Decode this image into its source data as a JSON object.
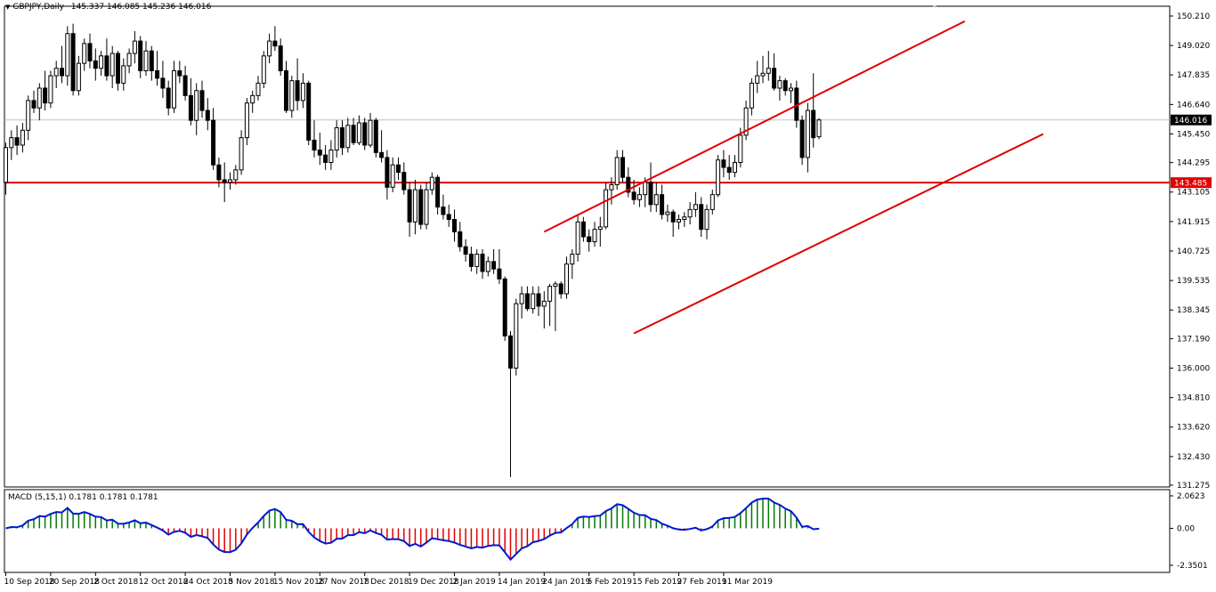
{
  "header": {
    "symbol_label": "GBPJPY,Daily",
    "ohlc_label": "145.337 146.085 145.236 146.016",
    "menu_icon": "triangle-down-icon"
  },
  "macd_header": {
    "label": "MACD (5,15,1) 0.1781 0.1781 0.1781"
  },
  "colors": {
    "background": "#ffffff",
    "candle_outline": "#000000",
    "bull_body": "#ffffff",
    "bear_body": "#000000",
    "trendline": "#e00000",
    "hline": "#e00000",
    "macd_positive": "#007a00",
    "macd_negative": "#e00000",
    "macd_line": "#0018d0",
    "last_price_bg": "#000000",
    "last_price_fg": "#ffffff",
    "hline_label_bg": "#e00000",
    "hline_label_fg": "#ffffff"
  },
  "chart_data": [
    {
      "type": "candlestick",
      "symbol": "GBPJPY",
      "timeframe": "Daily",
      "ylim": [
        131.275,
        150.21
      ],
      "price_ticks": [
        "150.210",
        "149.020",
        "147.835",
        "146.640",
        "145.450",
        "144.295",
        "143.105",
        "141.915",
        "140.725",
        "139.535",
        "138.345",
        "137.190",
        "136.000",
        "134.810",
        "133.620",
        "132.430",
        "131.275"
      ],
      "date_labels": [
        "10 Sep 2018",
        "20 Sep 2018",
        "2 Oct 2018",
        "12 Oct 2018",
        "24 Oct 2018",
        "5 Nov 2018",
        "15 Nov 2018",
        "27 Nov 2018",
        "7 Dec 2018",
        "19 Dec 2018",
        "2 Jan 2019",
        "14 Jan 2019",
        "24 Jan 2019",
        "5 Feb 2019",
        "15 Feb 2019",
        "27 Feb 2019",
        "11 Mar 2019"
      ],
      "last_price": "146.016",
      "horizontal_line": {
        "value": 143.485,
        "label": "143.485"
      },
      "channel": {
        "upper": [
          {
            "bar": 96,
            "price": 141.5
          },
          {
            "bar": 171,
            "price": 150.0
          }
        ],
        "lower": [
          {
            "bar": 112,
            "price": 137.4
          },
          {
            "bar": 185,
            "price": 145.45
          }
        ]
      },
      "candles": [
        {
          "o": 143.5,
          "h": 145.1,
          "l": 143.0,
          "c": 144.9
        },
        {
          "o": 144.9,
          "h": 145.6,
          "l": 144.4,
          "c": 145.3
        },
        {
          "o": 145.3,
          "h": 145.8,
          "l": 144.6,
          "c": 145.0
        },
        {
          "o": 145.0,
          "h": 145.9,
          "l": 144.7,
          "c": 145.6
        },
        {
          "o": 145.6,
          "h": 147.0,
          "l": 145.2,
          "c": 146.8
        },
        {
          "o": 146.8,
          "h": 147.2,
          "l": 146.3,
          "c": 146.5
        },
        {
          "o": 146.5,
          "h": 147.5,
          "l": 146.0,
          "c": 147.3
        },
        {
          "o": 147.3,
          "h": 148.0,
          "l": 146.4,
          "c": 146.7
        },
        {
          "o": 146.7,
          "h": 148.0,
          "l": 146.5,
          "c": 147.8
        },
        {
          "o": 147.8,
          "h": 148.4,
          "l": 147.3,
          "c": 148.1
        },
        {
          "o": 148.1,
          "h": 149.0,
          "l": 147.5,
          "c": 147.8
        },
        {
          "o": 147.8,
          "h": 149.8,
          "l": 147.4,
          "c": 149.5
        },
        {
          "o": 149.5,
          "h": 149.9,
          "l": 147.0,
          "c": 147.2
        },
        {
          "o": 147.2,
          "h": 148.6,
          "l": 147.0,
          "c": 148.3
        },
        {
          "o": 148.3,
          "h": 149.3,
          "l": 148.0,
          "c": 149.1
        },
        {
          "o": 149.1,
          "h": 149.5,
          "l": 148.1,
          "c": 148.4
        },
        {
          "o": 148.4,
          "h": 148.9,
          "l": 147.6,
          "c": 148.1
        },
        {
          "o": 148.1,
          "h": 148.8,
          "l": 147.8,
          "c": 148.6
        },
        {
          "o": 148.6,
          "h": 149.3,
          "l": 147.6,
          "c": 147.8
        },
        {
          "o": 147.8,
          "h": 149.0,
          "l": 147.3,
          "c": 148.7
        },
        {
          "o": 148.7,
          "h": 148.8,
          "l": 147.2,
          "c": 147.5
        },
        {
          "o": 147.5,
          "h": 148.5,
          "l": 147.2,
          "c": 148.2
        },
        {
          "o": 148.2,
          "h": 148.9,
          "l": 147.9,
          "c": 148.7
        },
        {
          "o": 148.7,
          "h": 149.6,
          "l": 148.3,
          "c": 149.2
        },
        {
          "o": 149.2,
          "h": 149.4,
          "l": 147.7,
          "c": 148.0
        },
        {
          "o": 148.0,
          "h": 149.2,
          "l": 147.8,
          "c": 148.8
        },
        {
          "o": 148.8,
          "h": 149.0,
          "l": 147.6,
          "c": 148.0
        },
        {
          "o": 148.0,
          "h": 148.8,
          "l": 147.4,
          "c": 147.7
        },
        {
          "o": 147.7,
          "h": 148.4,
          "l": 146.9,
          "c": 147.3
        },
        {
          "o": 147.3,
          "h": 147.6,
          "l": 146.2,
          "c": 146.5
        },
        {
          "o": 146.5,
          "h": 148.4,
          "l": 146.3,
          "c": 148.0
        },
        {
          "o": 148.0,
          "h": 148.4,
          "l": 147.5,
          "c": 147.8
        },
        {
          "o": 147.8,
          "h": 148.2,
          "l": 146.8,
          "c": 147.0
        },
        {
          "o": 147.0,
          "h": 147.7,
          "l": 145.8,
          "c": 146.0
        },
        {
          "o": 146.0,
          "h": 147.5,
          "l": 145.4,
          "c": 147.2
        },
        {
          "o": 147.2,
          "h": 147.6,
          "l": 146.1,
          "c": 146.4
        },
        {
          "o": 146.4,
          "h": 146.9,
          "l": 145.6,
          "c": 146.0
        },
        {
          "o": 146.0,
          "h": 146.5,
          "l": 144.0,
          "c": 144.2
        },
        {
          "o": 144.2,
          "h": 144.5,
          "l": 143.3,
          "c": 143.6
        },
        {
          "o": 143.6,
          "h": 144.3,
          "l": 142.7,
          "c": 143.5
        },
        {
          "o": 143.5,
          "h": 143.9,
          "l": 143.2,
          "c": 143.6
        },
        {
          "o": 143.6,
          "h": 144.2,
          "l": 143.4,
          "c": 144.0
        },
        {
          "o": 144.0,
          "h": 145.6,
          "l": 143.8,
          "c": 145.3
        },
        {
          "o": 145.3,
          "h": 146.9,
          "l": 145.0,
          "c": 146.7
        },
        {
          "o": 146.7,
          "h": 147.2,
          "l": 146.3,
          "c": 147.0
        },
        {
          "o": 147.0,
          "h": 147.8,
          "l": 146.8,
          "c": 147.5
        },
        {
          "o": 147.5,
          "h": 148.8,
          "l": 147.3,
          "c": 148.6
        },
        {
          "o": 148.6,
          "h": 149.5,
          "l": 148.3,
          "c": 149.2
        },
        {
          "o": 149.2,
          "h": 149.8,
          "l": 148.8,
          "c": 149.0
        },
        {
          "o": 149.0,
          "h": 149.3,
          "l": 147.8,
          "c": 148.0
        },
        {
          "o": 148.0,
          "h": 148.4,
          "l": 146.3,
          "c": 146.4
        },
        {
          "o": 146.4,
          "h": 147.8,
          "l": 146.1,
          "c": 147.6
        },
        {
          "o": 147.6,
          "h": 148.5,
          "l": 146.4,
          "c": 146.8
        },
        {
          "o": 146.8,
          "h": 147.9,
          "l": 146.5,
          "c": 147.5
        },
        {
          "o": 147.5,
          "h": 147.6,
          "l": 145.0,
          "c": 145.2
        },
        {
          "o": 145.2,
          "h": 146.0,
          "l": 144.5,
          "c": 144.8
        },
        {
          "o": 144.8,
          "h": 145.5,
          "l": 144.2,
          "c": 144.6
        },
        {
          "o": 144.6,
          "h": 145.0,
          "l": 144.0,
          "c": 144.3
        },
        {
          "o": 144.3,
          "h": 145.2,
          "l": 144.0,
          "c": 144.8
        },
        {
          "o": 144.8,
          "h": 146.0,
          "l": 144.5,
          "c": 145.7
        },
        {
          "o": 145.7,
          "h": 146.0,
          "l": 144.6,
          "c": 144.9
        },
        {
          "o": 144.9,
          "h": 146.1,
          "l": 144.7,
          "c": 145.8
        },
        {
          "o": 145.8,
          "h": 146.1,
          "l": 145.0,
          "c": 145.1
        },
        {
          "o": 145.1,
          "h": 146.2,
          "l": 145.0,
          "c": 145.9
        },
        {
          "o": 145.9,
          "h": 146.1,
          "l": 144.8,
          "c": 145.0
        },
        {
          "o": 145.0,
          "h": 146.3,
          "l": 144.9,
          "c": 146.0
        },
        {
          "o": 146.0,
          "h": 146.1,
          "l": 144.5,
          "c": 144.7
        },
        {
          "o": 144.7,
          "h": 145.6,
          "l": 144.3,
          "c": 144.5
        },
        {
          "o": 144.5,
          "h": 144.8,
          "l": 142.8,
          "c": 143.3
        },
        {
          "o": 143.3,
          "h": 144.5,
          "l": 143.1,
          "c": 144.2
        },
        {
          "o": 144.2,
          "h": 144.5,
          "l": 143.6,
          "c": 143.9
        },
        {
          "o": 143.9,
          "h": 144.3,
          "l": 143.0,
          "c": 143.2
        },
        {
          "o": 143.2,
          "h": 143.5,
          "l": 141.3,
          "c": 141.9
        },
        {
          "o": 141.9,
          "h": 143.6,
          "l": 141.4,
          "c": 143.2
        },
        {
          "o": 143.2,
          "h": 143.4,
          "l": 141.6,
          "c": 141.8
        },
        {
          "o": 141.8,
          "h": 143.5,
          "l": 141.6,
          "c": 143.2
        },
        {
          "o": 143.2,
          "h": 143.9,
          "l": 143.0,
          "c": 143.7
        },
        {
          "o": 143.7,
          "h": 143.8,
          "l": 142.2,
          "c": 142.5
        },
        {
          "o": 142.5,
          "h": 143.0,
          "l": 142.0,
          "c": 142.2
        },
        {
          "o": 142.2,
          "h": 142.6,
          "l": 141.7,
          "c": 142.0
        },
        {
          "o": 142.0,
          "h": 142.4,
          "l": 141.1,
          "c": 141.5
        },
        {
          "o": 141.5,
          "h": 141.9,
          "l": 140.7,
          "c": 140.9
        },
        {
          "o": 140.9,
          "h": 141.2,
          "l": 140.3,
          "c": 140.6
        },
        {
          "o": 140.6,
          "h": 140.9,
          "l": 139.9,
          "c": 140.1
        },
        {
          "o": 140.1,
          "h": 140.8,
          "l": 139.8,
          "c": 140.6
        },
        {
          "o": 140.6,
          "h": 140.8,
          "l": 139.6,
          "c": 139.9
        },
        {
          "o": 139.9,
          "h": 140.5,
          "l": 139.7,
          "c": 140.3
        },
        {
          "o": 140.3,
          "h": 140.8,
          "l": 139.8,
          "c": 140.0
        },
        {
          "o": 140.0,
          "h": 140.8,
          "l": 139.4,
          "c": 139.6
        },
        {
          "o": 139.6,
          "h": 139.7,
          "l": 137.1,
          "c": 137.3
        },
        {
          "o": 137.3,
          "h": 137.5,
          "l": 131.6,
          "c": 136.0
        },
        {
          "o": 136.0,
          "h": 138.8,
          "l": 135.7,
          "c": 138.6
        },
        {
          "o": 138.6,
          "h": 139.3,
          "l": 138.0,
          "c": 139.0
        },
        {
          "o": 139.0,
          "h": 139.3,
          "l": 138.3,
          "c": 138.4
        },
        {
          "o": 138.4,
          "h": 139.3,
          "l": 138.2,
          "c": 139.0
        },
        {
          "o": 139.0,
          "h": 139.3,
          "l": 138.1,
          "c": 138.5
        },
        {
          "o": 138.5,
          "h": 139.1,
          "l": 137.6,
          "c": 138.7
        },
        {
          "o": 138.7,
          "h": 139.4,
          "l": 137.7,
          "c": 139.3
        },
        {
          "o": 139.3,
          "h": 139.5,
          "l": 137.5,
          "c": 139.4
        },
        {
          "o": 139.4,
          "h": 139.5,
          "l": 138.8,
          "c": 139.0
        },
        {
          "o": 139.0,
          "h": 140.5,
          "l": 138.8,
          "c": 140.2
        },
        {
          "o": 140.2,
          "h": 140.8,
          "l": 139.6,
          "c": 140.6
        },
        {
          "o": 140.6,
          "h": 142.2,
          "l": 140.3,
          "c": 141.9
        },
        {
          "o": 141.9,
          "h": 142.1,
          "l": 141.1,
          "c": 141.3
        },
        {
          "o": 141.3,
          "h": 141.6,
          "l": 140.7,
          "c": 141.1
        },
        {
          "o": 141.1,
          "h": 141.9,
          "l": 140.9,
          "c": 141.6
        },
        {
          "o": 141.6,
          "h": 142.1,
          "l": 140.9,
          "c": 141.7
        },
        {
          "o": 141.7,
          "h": 143.5,
          "l": 141.6,
          "c": 143.2
        },
        {
          "o": 143.2,
          "h": 143.7,
          "l": 142.6,
          "c": 143.4
        },
        {
          "o": 143.4,
          "h": 144.8,
          "l": 143.2,
          "c": 144.5
        },
        {
          "o": 144.5,
          "h": 144.8,
          "l": 143.5,
          "c": 143.7
        },
        {
          "o": 143.7,
          "h": 144.1,
          "l": 142.9,
          "c": 143.1
        },
        {
          "o": 143.1,
          "h": 143.6,
          "l": 142.6,
          "c": 142.8
        },
        {
          "o": 142.8,
          "h": 143.3,
          "l": 142.5,
          "c": 143.0
        },
        {
          "o": 143.0,
          "h": 143.7,
          "l": 142.5,
          "c": 143.5
        },
        {
          "o": 143.5,
          "h": 144.3,
          "l": 142.3,
          "c": 142.6
        },
        {
          "o": 142.6,
          "h": 143.5,
          "l": 142.3,
          "c": 143.0
        },
        {
          "o": 143.0,
          "h": 143.4,
          "l": 142.0,
          "c": 142.2
        },
        {
          "o": 142.2,
          "h": 142.6,
          "l": 141.9,
          "c": 142.3
        },
        {
          "o": 142.3,
          "h": 142.4,
          "l": 141.3,
          "c": 141.9
        },
        {
          "o": 141.9,
          "h": 142.2,
          "l": 141.6,
          "c": 142.0
        },
        {
          "o": 142.0,
          "h": 142.3,
          "l": 141.7,
          "c": 142.1
        },
        {
          "o": 142.1,
          "h": 142.7,
          "l": 141.8,
          "c": 142.4
        },
        {
          "o": 142.4,
          "h": 143.1,
          "l": 142.1,
          "c": 142.6
        },
        {
          "o": 142.6,
          "h": 142.9,
          "l": 141.3,
          "c": 141.6
        },
        {
          "o": 141.6,
          "h": 142.6,
          "l": 141.2,
          "c": 142.4
        },
        {
          "o": 142.4,
          "h": 143.2,
          "l": 142.2,
          "c": 143.0
        },
        {
          "o": 143.0,
          "h": 144.6,
          "l": 142.9,
          "c": 144.4
        },
        {
          "o": 144.4,
          "h": 144.8,
          "l": 143.7,
          "c": 144.1
        },
        {
          "o": 144.1,
          "h": 144.6,
          "l": 143.6,
          "c": 143.9
        },
        {
          "o": 143.9,
          "h": 144.6,
          "l": 143.7,
          "c": 144.3
        },
        {
          "o": 144.3,
          "h": 145.7,
          "l": 144.1,
          "c": 145.4
        },
        {
          "o": 145.4,
          "h": 146.8,
          "l": 145.2,
          "c": 146.5
        },
        {
          "o": 146.5,
          "h": 147.7,
          "l": 146.2,
          "c": 147.5
        },
        {
          "o": 147.5,
          "h": 148.4,
          "l": 147.1,
          "c": 147.8
        },
        {
          "o": 147.8,
          "h": 148.6,
          "l": 147.5,
          "c": 147.9
        },
        {
          "o": 147.9,
          "h": 148.8,
          "l": 147.6,
          "c": 148.1
        },
        {
          "o": 148.1,
          "h": 148.7,
          "l": 147.2,
          "c": 147.3
        },
        {
          "o": 147.3,
          "h": 147.8,
          "l": 146.8,
          "c": 147.6
        },
        {
          "o": 147.6,
          "h": 147.7,
          "l": 147.0,
          "c": 147.2
        },
        {
          "o": 147.2,
          "h": 147.5,
          "l": 146.7,
          "c": 147.3
        },
        {
          "o": 147.3,
          "h": 147.6,
          "l": 145.7,
          "c": 146.0
        },
        {
          "o": 146.0,
          "h": 146.2,
          "l": 144.2,
          "c": 144.5
        },
        {
          "o": 144.5,
          "h": 146.7,
          "l": 143.9,
          "c": 146.4
        },
        {
          "o": 146.4,
          "h": 147.9,
          "l": 144.9,
          "c": 145.3
        },
        {
          "o": 145.337,
          "h": 146.085,
          "l": 145.236,
          "c": 146.016
        }
      ]
    },
    {
      "type": "bar",
      "indicator": "MACD",
      "parameters": "5,15,1",
      "ylim": [
        -2.3501,
        2.0623
      ],
      "ticks": [
        "2.0623",
        "0.00",
        "-2.3501"
      ],
      "last_values": [
        0.1781,
        0.1781,
        0.1781
      ]
    }
  ]
}
